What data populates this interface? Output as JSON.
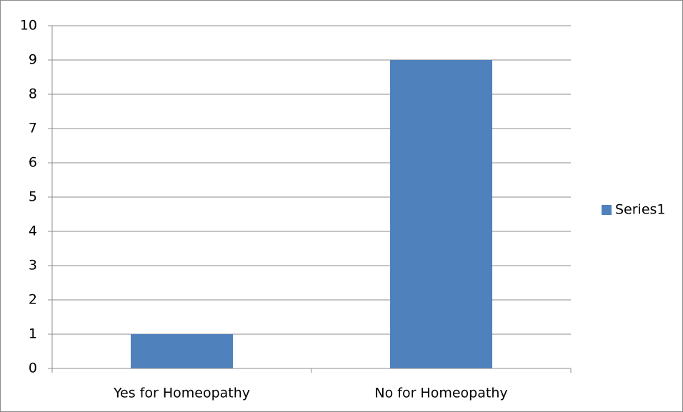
{
  "chart_data": {
    "type": "bar",
    "categories": [
      "Yes for Homeopathy",
      "No for Homeopathy"
    ],
    "series": [
      {
        "name": "Series1",
        "color": "#4f81bd",
        "values": [
          1,
          9
        ]
      }
    ],
    "ylim": [
      0,
      10
    ],
    "yticks": [
      0,
      1,
      2,
      3,
      4,
      5,
      6,
      7,
      8,
      9,
      10
    ],
    "grid": true,
    "legend": "right"
  }
}
